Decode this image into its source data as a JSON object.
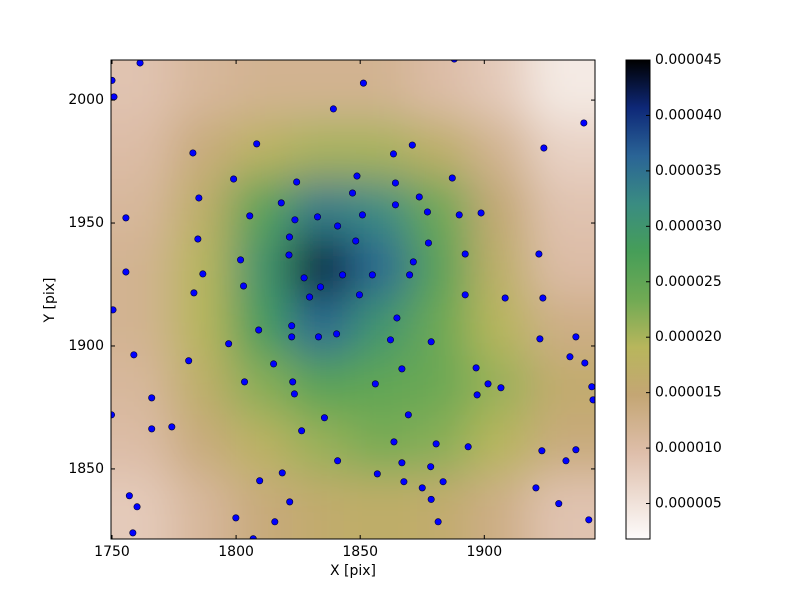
{
  "chart_data": {
    "type": "scatter",
    "xlabel": "X [pix]",
    "ylabel": "Y [pix]",
    "xlim": [
      1749.6,
      1944.6
    ],
    "ylim": [
      1821.5,
      2016.3
    ],
    "xticks": [
      1750,
      1800,
      1850,
      1900
    ],
    "yticks": [
      1850,
      1900,
      1950,
      2000
    ],
    "color": "#0000ff",
    "x": [
      1750,
      1750.8,
      1761.3,
      1887.9,
      1851.3,
      1839.2,
      1940.1,
      1808.3,
      1871,
      1924,
      1782.6,
      1863.4,
      1887.1,
      1848.7,
      1799,
      1824.4,
      1864.2,
      1846.9,
      1873.8,
      1785,
      1818.2,
      1864.2,
      1877.1,
      1898.7,
      1889.9,
      1850.9,
      1805.5,
      1832.8,
      1755.6,
      1823.7,
      1840.9,
      1821.5,
      1848.2,
      1784.6,
      1877.5,
      1892.3,
      1922,
      1821.3,
      1801.8,
      1871.4,
      1755.6,
      1786.6,
      1842.9,
      1854.9,
      1869.9,
      1827.4,
      1803,
      1834,
      1829.6,
      1783,
      1849.7,
      1892.3,
      1908.4,
      1923.6,
      1750.4,
      1864.8,
      1809.1,
      1822.4,
      1822.4,
      1833.2,
      1840.5,
      1862.2,
      1922.4,
      1878.6,
      1797,
      1936.9,
      1758.8,
      1934.5,
      1780.9,
      1815.1,
      1940.5,
      1896.7,
      1866.8,
      1943.3,
      1856.1,
      1901.5,
      1906.7,
      1803.4,
      1822.8,
      1823.5,
      1897.1,
      1766,
      1943.8,
      1835.6,
      1869.4,
      1749.8,
      1826.4,
      1774.1,
      1766,
      1863.6,
      1880.6,
      1893.5,
      1923.2,
      1936.9,
      1840.9,
      1932.9,
      1866.8,
      1878.4,
      1818.6,
      1856.9,
      1809.5,
      1867.6,
      1883.4,
      1875,
      1920.8,
      1757,
      1878.6,
      1821.6,
      1760.1,
      1930,
      1799.9,
      1815.6,
      1881.4,
      1942.1,
      1758.4,
      1806.9
    ],
    "y": [
      2008,
      2001.3,
      2015.1,
      2016.7,
      2006.9,
      1996.4,
      1990.7,
      1982.2,
      1981.7,
      1980.5,
      1978.5,
      1978.1,
      1968.3,
      1969.1,
      1967.9,
      1966.7,
      1966.3,
      1962.2,
      1960.6,
      1960.2,
      1958.2,
      1957.4,
      1954.5,
      1954.1,
      1953.3,
      1953.3,
      1952.9,
      1952.5,
      1952.1,
      1951.3,
      1948.8,
      1944.3,
      1942.7,
      1943.5,
      1941.9,
      1937.4,
      1937.4,
      1937,
      1935,
      1934.2,
      1930.1,
      1929.3,
      1928.9,
      1928.9,
      1928.9,
      1927.7,
      1924.4,
      1924,
      1919.9,
      1921.6,
      1920.8,
      1920.8,
      1919.5,
      1919.5,
      1914.7,
      1911.4,
      1906.5,
      1908.2,
      1903.7,
      1903.7,
      1904.9,
      1902.5,
      1902.9,
      1901.7,
      1900.9,
      1903.7,
      1896.4,
      1895.6,
      1894,
      1892.7,
      1893.1,
      1891.1,
      1890.7,
      1883.4,
      1884.6,
      1884.6,
      1883,
      1885.4,
      1885.4,
      1880.5,
      1880.1,
      1878.9,
      1878.1,
      1870.8,
      1872,
      1872,
      1865.5,
      1867.1,
      1866.3,
      1861,
      1860.2,
      1859,
      1857.4,
      1857.8,
      1853.3,
      1853.3,
      1852.5,
      1850.9,
      1848.4,
      1848,
      1845.2,
      1844.8,
      1844.8,
      1842.3,
      1842.3,
      1839.1,
      1837.6,
      1836.6,
      1834.6,
      1835.9,
      1830.1,
      1828.5,
      1828.5,
      1829.3,
      1824,
      1821.6
    ],
    "density": {
      "colormap": "gist_earth_r",
      "clim": [
        1.8e-06,
        4.5e-05
      ],
      "cticks": [
        {
          "value": 5e-06,
          "label": "0.000005"
        },
        {
          "value": 1e-05,
          "label": "0.000010"
        },
        {
          "value": 1.5e-05,
          "label": "0.000015"
        },
        {
          "value": 2e-05,
          "label": "0.000020"
        },
        {
          "value": 2.5e-05,
          "label": "0.000025"
        },
        {
          "value": 3e-05,
          "label": "0.000030"
        },
        {
          "value": 3.5e-05,
          "label": "0.000035"
        },
        {
          "value": 4e-05,
          "label": "0.000040"
        },
        {
          "value": 4.5e-05,
          "label": "0.000045"
        }
      ],
      "x": [
        1762,
        1786,
        1810,
        1834,
        1858,
        1882,
        1906,
        1930
      ],
      "y": [
        2004,
        1980,
        1956,
        1932,
        1908,
        1884,
        1860,
        1836
      ],
      "z": [
        [
          9e-06,
          1.1e-05,
          1.2e-05,
          1.2e-05,
          1.2e-05,
          1e-05,
          8e-06,
          4e-06
        ],
        [
          1e-05,
          1.4e-05,
          1.8e-05,
          2e-05,
          2e-05,
          1.7e-05,
          1.2e-05,
          7e-06
        ],
        [
          1.1e-05,
          1.7e-05,
          2.6e-05,
          3.4e-05,
          3.2e-05,
          2.4e-05,
          1.5e-05,
          9e-06
        ],
        [
          1.2e-05,
          1.9e-05,
          3e-05,
          4.3e-05,
          3.6e-05,
          2.6e-05,
          1.7e-05,
          1e-05
        ],
        [
          1.2e-05,
          1.9e-05,
          2.8e-05,
          3.6e-05,
          3e-05,
          2.4e-05,
          1.9e-05,
          1.3e-05
        ],
        [
          1.1e-05,
          1.7e-05,
          2.2e-05,
          2.6e-05,
          2.5e-05,
          2.4e-05,
          2.1e-05,
          1.6e-05
        ],
        [
          1e-05,
          1.4e-05,
          1.8e-05,
          2.1e-05,
          2.3e-05,
          2.2e-05,
          1.9e-05,
          1.4e-05
        ],
        [
          8e-06,
          1.1e-05,
          1.4e-05,
          1.6e-05,
          1.7e-05,
          1.6e-05,
          1.3e-05,
          9e-06
        ]
      ]
    }
  }
}
